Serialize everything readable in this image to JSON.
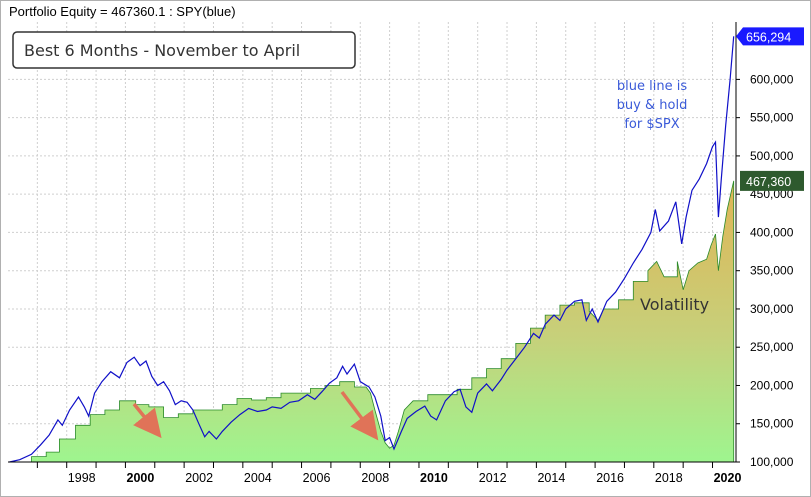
{
  "header": {
    "title": "Portfolio Equity = 467360.1 : SPY(blue)"
  },
  "annotations": {
    "strategy_label": "Best 6 Months - November to April",
    "blue_note": [
      "blue line is",
      "buy & hold",
      "for $SPX"
    ],
    "volatility_label": "Volatility"
  },
  "colors": {
    "spy_line": "#1010c8",
    "equity_fill_top": "#e0b455",
    "equity_fill_mid": "#c7d07a",
    "equity_fill_bottom": "#9ef58f",
    "equity_outline": "#2a8a2a",
    "arrow": "#e07358",
    "spy_badge": "#1a1aff",
    "equity_badge": "#2e5a2e",
    "note_text": "#3a5ad8"
  },
  "chart_data": {
    "type": "area",
    "title": "Portfolio Equity = 467360.1 : SPY(blue)",
    "xlabel": "",
    "ylabel": "",
    "xlim": [
      1996.0,
      2020.8
    ],
    "ylim": [
      100000,
      675000
    ],
    "grid": true,
    "x_tick_labels": [
      {
        "label": "1998",
        "value": 1998,
        "bold": false
      },
      {
        "label": "2000",
        "value": 2000,
        "bold": true
      },
      {
        "label": "2002",
        "value": 2002,
        "bold": false
      },
      {
        "label": "2004",
        "value": 2004,
        "bold": false
      },
      {
        "label": "2006",
        "value": 2006,
        "bold": false
      },
      {
        "label": "2008",
        "value": 2008,
        "bold": false
      },
      {
        "label": "2010",
        "value": 2010,
        "bold": true
      },
      {
        "label": "2012",
        "value": 2012,
        "bold": false
      },
      {
        "label": "2014",
        "value": 2014,
        "bold": false
      },
      {
        "label": "2016",
        "value": 2016,
        "bold": false
      },
      {
        "label": "2018",
        "value": 2018,
        "bold": false
      },
      {
        "label": "2020",
        "value": 2020,
        "bold": true
      }
    ],
    "y_tick_labels": [
      {
        "label": "100,000",
        "value": 100000
      },
      {
        "label": "150,000",
        "value": 150000
      },
      {
        "label": "200,000",
        "value": 200000
      },
      {
        "label": "250,000",
        "value": 250000
      },
      {
        "label": "300,000",
        "value": 300000
      },
      {
        "label": "350,000",
        "value": 350000
      },
      {
        "label": "400,000",
        "value": 400000
      },
      {
        "label": "450,000",
        "value": 450000
      },
      {
        "label": "500,000",
        "value": 500000
      },
      {
        "label": "550,000",
        "value": 550000
      },
      {
        "label": "600,000",
        "value": 600000
      }
    ],
    "series": [
      {
        "kind": "line",
        "last_value_label": "656,294",
        "points": [
          [
            1996.05,
            100000
          ],
          [
            1996.4,
            103000
          ],
          [
            1996.8,
            110000
          ],
          [
            1997.1,
            122000
          ],
          [
            1997.4,
            135000
          ],
          [
            1997.7,
            155000
          ],
          [
            1997.85,
            148000
          ],
          [
            1998.1,
            168000
          ],
          [
            1998.4,
            185000
          ],
          [
            1998.6,
            172000
          ],
          [
            1998.75,
            160000
          ],
          [
            1998.95,
            190000
          ],
          [
            1999.2,
            205000
          ],
          [
            1999.5,
            218000
          ],
          [
            1999.8,
            210000
          ],
          [
            2000.05,
            230000
          ],
          [
            2000.3,
            237000
          ],
          [
            2000.5,
            226000
          ],
          [
            2000.7,
            232000
          ],
          [
            2000.9,
            212000
          ],
          [
            2001.1,
            200000
          ],
          [
            2001.3,
            205000
          ],
          [
            2001.5,
            193000
          ],
          [
            2001.7,
            175000
          ],
          [
            2001.9,
            180000
          ],
          [
            2002.1,
            178000
          ],
          [
            2002.3,
            168000
          ],
          [
            2002.5,
            150000
          ],
          [
            2002.7,
            133000
          ],
          [
            2002.85,
            140000
          ],
          [
            2003.1,
            130000
          ],
          [
            2003.3,
            140000
          ],
          [
            2003.6,
            152000
          ],
          [
            2003.9,
            162000
          ],
          [
            2004.2,
            170000
          ],
          [
            2004.5,
            166000
          ],
          [
            2004.8,
            168000
          ],
          [
            2005.0,
            172000
          ],
          [
            2005.3,
            170000
          ],
          [
            2005.6,
            178000
          ],
          [
            2005.9,
            180000
          ],
          [
            2006.2,
            188000
          ],
          [
            2006.45,
            182000
          ],
          [
            2006.7,
            192000
          ],
          [
            2006.95,
            203000
          ],
          [
            2007.2,
            210000
          ],
          [
            2007.4,
            225000
          ],
          [
            2007.55,
            215000
          ],
          [
            2007.8,
            228000
          ],
          [
            2008.0,
            205000
          ],
          [
            2008.3,
            198000
          ],
          [
            2008.5,
            185000
          ],
          [
            2008.7,
            160000
          ],
          [
            2008.85,
            128000
          ],
          [
            2009.0,
            132000
          ],
          [
            2009.15,
            117000
          ],
          [
            2009.4,
            140000
          ],
          [
            2009.6,
            157000
          ],
          [
            2009.9,
            166000
          ],
          [
            2010.2,
            173000
          ],
          [
            2010.4,
            160000
          ],
          [
            2010.6,
            155000
          ],
          [
            2010.9,
            180000
          ],
          [
            2011.2,
            192000
          ],
          [
            2011.4,
            195000
          ],
          [
            2011.6,
            172000
          ],
          [
            2011.8,
            165000
          ],
          [
            2012.0,
            190000
          ],
          [
            2012.3,
            202000
          ],
          [
            2012.5,
            193000
          ],
          [
            2012.8,
            208000
          ],
          [
            2013.0,
            220000
          ],
          [
            2013.3,
            235000
          ],
          [
            2013.6,
            250000
          ],
          [
            2013.9,
            268000
          ],
          [
            2014.1,
            262000
          ],
          [
            2014.3,
            280000
          ],
          [
            2014.6,
            292000
          ],
          [
            2014.8,
            285000
          ],
          [
            2015.0,
            300000
          ],
          [
            2015.3,
            310000
          ],
          [
            2015.55,
            312000
          ],
          [
            2015.7,
            285000
          ],
          [
            2015.9,
            300000
          ],
          [
            2016.1,
            283000
          ],
          [
            2016.4,
            310000
          ],
          [
            2016.7,
            322000
          ],
          [
            2017.0,
            340000
          ],
          [
            2017.3,
            360000
          ],
          [
            2017.6,
            378000
          ],
          [
            2017.9,
            400000
          ],
          [
            2018.05,
            430000
          ],
          [
            2018.2,
            402000
          ],
          [
            2018.5,
            415000
          ],
          [
            2018.75,
            440000
          ],
          [
            2018.95,
            385000
          ],
          [
            2019.1,
            420000
          ],
          [
            2019.3,
            455000
          ],
          [
            2019.55,
            470000
          ],
          [
            2019.8,
            490000
          ],
          [
            2020.0,
            512000
          ],
          [
            2020.1,
            518000
          ],
          [
            2020.2,
            420000
          ],
          [
            2020.3,
            470000
          ],
          [
            2020.45,
            540000
          ],
          [
            2020.6,
            600000
          ],
          [
            2020.72,
            656294
          ]
        ]
      },
      {
        "kind": "area",
        "last_value_label": "467,360",
        "points": [
          [
            1996.05,
            100000
          ],
          [
            1996.8,
            100000
          ],
          [
            1996.8,
            107000
          ],
          [
            1997.3,
            107000
          ],
          [
            1997.3,
            113000
          ],
          [
            1997.75,
            113000
          ],
          [
            1997.75,
            130000
          ],
          [
            1998.3,
            130000
          ],
          [
            1998.3,
            148000
          ],
          [
            1998.8,
            148000
          ],
          [
            1998.8,
            162000
          ],
          [
            1999.3,
            162000
          ],
          [
            1999.3,
            168000
          ],
          [
            1999.8,
            168000
          ],
          [
            1999.8,
            180000
          ],
          [
            2000.35,
            180000
          ],
          [
            2000.35,
            175000
          ],
          [
            2000.8,
            175000
          ],
          [
            2000.8,
            172000
          ],
          [
            2001.3,
            172000
          ],
          [
            2001.3,
            158000
          ],
          [
            2001.8,
            158000
          ],
          [
            2001.8,
            163000
          ],
          [
            2002.3,
            163000
          ],
          [
            2002.3,
            168000
          ],
          [
            2003.3,
            168000
          ],
          [
            2003.3,
            175000
          ],
          [
            2003.8,
            175000
          ],
          [
            2003.8,
            183000
          ],
          [
            2004.3,
            183000
          ],
          [
            2004.3,
            181000
          ],
          [
            2004.8,
            181000
          ],
          [
            2004.8,
            184000
          ],
          [
            2005.3,
            184000
          ],
          [
            2005.3,
            190000
          ],
          [
            2006.3,
            190000
          ],
          [
            2006.3,
            196000
          ],
          [
            2006.8,
            196000
          ],
          [
            2006.8,
            200000
          ],
          [
            2007.3,
            200000
          ],
          [
            2007.3,
            205000
          ],
          [
            2007.8,
            205000
          ],
          [
            2007.8,
            198000
          ],
          [
            2008.2,
            198000
          ],
          [
            2008.35,
            190000
          ],
          [
            2008.5,
            168000
          ],
          [
            2008.7,
            140000
          ],
          [
            2008.85,
            125000
          ],
          [
            2009.0,
            118000
          ],
          [
            2009.15,
            122000
          ],
          [
            2009.3,
            140000
          ],
          [
            2009.5,
            168000
          ],
          [
            2009.8,
            180000
          ],
          [
            2010.3,
            180000
          ],
          [
            2010.3,
            188000
          ],
          [
            2011.3,
            188000
          ],
          [
            2011.3,
            195000
          ],
          [
            2011.8,
            195000
          ],
          [
            2011.8,
            210000
          ],
          [
            2012.3,
            210000
          ],
          [
            2012.3,
            222000
          ],
          [
            2012.8,
            222000
          ],
          [
            2012.8,
            235000
          ],
          [
            2013.3,
            235000
          ],
          [
            2013.3,
            255000
          ],
          [
            2013.8,
            255000
          ],
          [
            2013.8,
            275000
          ],
          [
            2014.3,
            275000
          ],
          [
            2014.3,
            292000
          ],
          [
            2014.8,
            292000
          ],
          [
            2014.8,
            305000
          ],
          [
            2015.3,
            305000
          ],
          [
            2015.3,
            308000
          ],
          [
            2015.8,
            308000
          ],
          [
            2015.8,
            297000
          ],
          [
            2016.1,
            285000
          ],
          [
            2016.3,
            300000
          ],
          [
            2016.8,
            300000
          ],
          [
            2016.8,
            312000
          ],
          [
            2017.3,
            312000
          ],
          [
            2017.3,
            336000
          ],
          [
            2017.8,
            336000
          ],
          [
            2017.8,
            350000
          ],
          [
            2018.1,
            362000
          ],
          [
            2018.35,
            342000
          ],
          [
            2018.8,
            342000
          ],
          [
            2018.8,
            362000
          ],
          [
            2019.0,
            325000
          ],
          [
            2019.2,
            350000
          ],
          [
            2019.5,
            360000
          ],
          [
            2019.8,
            365000
          ],
          [
            2019.95,
            383000
          ],
          [
            2020.1,
            398000
          ],
          [
            2020.2,
            350000
          ],
          [
            2020.35,
            395000
          ],
          [
            2020.5,
            430000
          ],
          [
            2020.72,
            467360
          ]
        ]
      }
    ]
  }
}
